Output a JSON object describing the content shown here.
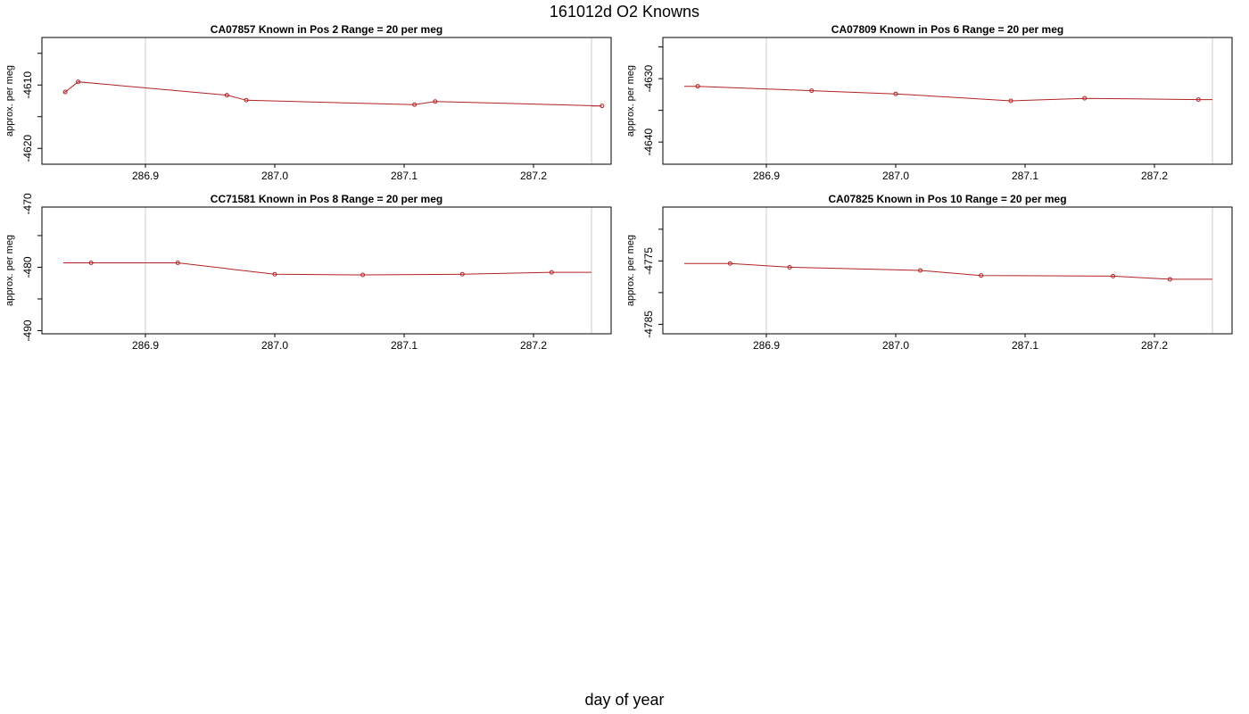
{
  "figure": {
    "title": "161012d   O2 Knowns",
    "xlabel": "day of year",
    "line_color": "#b22222",
    "grid_color": "#cccccc"
  },
  "chart_data": [
    {
      "type": "line",
      "title": "CA07857    Known in Pos 2          Range = 20 per meg",
      "xlabel": "",
      "ylabel": "approx. per meg",
      "xlim": [
        286.82,
        287.26
      ],
      "ylim": [
        -4622.5,
        -4602.5
      ],
      "x_ticks": [
        "286.9",
        "287.0",
        "287.1",
        "287.2"
      ],
      "y_ticks": [
        "-4610",
        "-4620"
      ],
      "vlines": [
        286.9,
        287.26
      ],
      "x": [
        286.838,
        286.848,
        286.963,
        286.978,
        287.108,
        287.124,
        287.253
      ],
      "y": [
        -4611.1,
        -4609.5,
        -4611.6,
        -4612.4,
        -4613.1,
        -4612.6,
        -4613.3
      ]
    },
    {
      "type": "line",
      "title": "CA07809    Known in Pos 6          Range = 20 per meg",
      "xlabel": "",
      "ylabel": "approx. per meg",
      "xlim": [
        286.82,
        287.26
      ],
      "ylim": [
        -4643.5,
        -4623.5
      ],
      "x_ticks": [
        "286.9",
        "287.0",
        "287.1",
        "287.2"
      ],
      "y_ticks": [
        "-4630",
        "-4640"
      ],
      "vlines": [
        286.9,
        287.26
      ],
      "x": [
        286.847,
        286.935,
        287.0,
        287.089,
        287.146,
        287.234
      ],
      "y": [
        -4631.2,
        -4631.9,
        -4632.4,
        -4633.5,
        -4633.1,
        -4633.3
      ]
    },
    {
      "type": "line",
      "title": "CC71581    Known in Pos 8          Range = 20 per meg",
      "xlabel": "",
      "ylabel": "approx. per meg",
      "xlim": [
        286.82,
        287.26
      ],
      "ylim": [
        -490.5,
        -470.5
      ],
      "x_ticks": [
        "286.9",
        "287.0",
        "287.1",
        "287.2"
      ],
      "y_ticks": [
        "-470",
        "-480",
        "-490"
      ],
      "vlines": [
        286.9,
        287.26
      ],
      "x": [
        286.858,
        286.925,
        287.0,
        287.068,
        287.145,
        287.214
      ],
      "y": [
        -479.3,
        -479.3,
        -481.1,
        -481.2,
        -481.1,
        -480.8
      ]
    },
    {
      "type": "line",
      "title": "CA07825    Known in Pos 10          Range = 20 per meg",
      "xlabel": "",
      "ylabel": "approx. per meg",
      "xlim": [
        286.82,
        287.26
      ],
      "ylim": [
        -4786.5,
        -4766.5
      ],
      "x_ticks": [
        "286.9",
        "287.0",
        "287.1",
        "287.2"
      ],
      "y_ticks": [
        "-4775",
        "-4785"
      ],
      "vlines": [
        286.9,
        287.26
      ],
      "x": [
        286.872,
        286.918,
        287.019,
        287.066,
        287.168,
        287.212
      ],
      "y": [
        -4775.4,
        -4776.0,
        -4776.5,
        -4777.3,
        -4777.4,
        -4777.9
      ]
    }
  ]
}
